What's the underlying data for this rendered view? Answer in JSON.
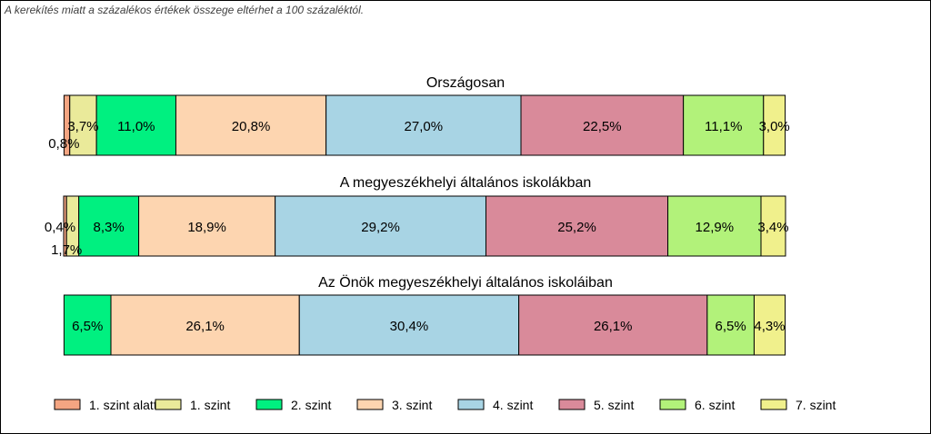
{
  "note": "A kerekítés miatt a  százalékos értékek összege eltérhet a 100 százaléktól.",
  "chart_data": {
    "type": "bar",
    "orientation": "horizontal-stacked",
    "grid": false,
    "legend_position": "bottom",
    "series": [
      {
        "name": "1. szint alatti",
        "color": "#f4a582"
      },
      {
        "name": "1. szint",
        "color": "#eaea9a"
      },
      {
        "name": "2. szint",
        "color": "#00f080"
      },
      {
        "name": "3. szint",
        "color": "#fdd5b0"
      },
      {
        "name": "4. szint",
        "color": "#a8d4e4"
      },
      {
        "name": "5. szint",
        "color": "#d98a9a"
      },
      {
        "name": "6. szint",
        "color": "#b2f27a"
      },
      {
        "name": "7. szint",
        "color": "#f0f08c"
      }
    ],
    "groups": [
      {
        "title": "Országosan",
        "values": [
          0.8,
          3.7,
          11.0,
          20.8,
          27.0,
          22.5,
          11.1,
          3.0
        ],
        "labels": [
          "0,8%",
          "3,7%",
          "11,0%",
          "20,8%",
          "27,0%",
          "22,5%",
          "11,1%",
          "3,0%"
        ]
      },
      {
        "title": "A megyeszékhelyi általános iskolákban",
        "values": [
          0.4,
          1.7,
          8.3,
          18.9,
          29.2,
          25.2,
          12.9,
          3.4
        ],
        "labels": [
          "0,4%",
          "1,7%",
          "8,3%",
          "18,9%",
          "29,2%",
          "25,2%",
          "12,9%",
          "3,4%"
        ]
      },
      {
        "title": "Az Önök megyeszékhelyi általános iskoláiban",
        "values": [
          0,
          0,
          6.5,
          26.1,
          30.4,
          26.1,
          6.5,
          4.3
        ],
        "labels": [
          "",
          "",
          "6,5%",
          "26,1%",
          "30,4%",
          "26,1%",
          "6,5%",
          "4,3%"
        ]
      }
    ]
  }
}
